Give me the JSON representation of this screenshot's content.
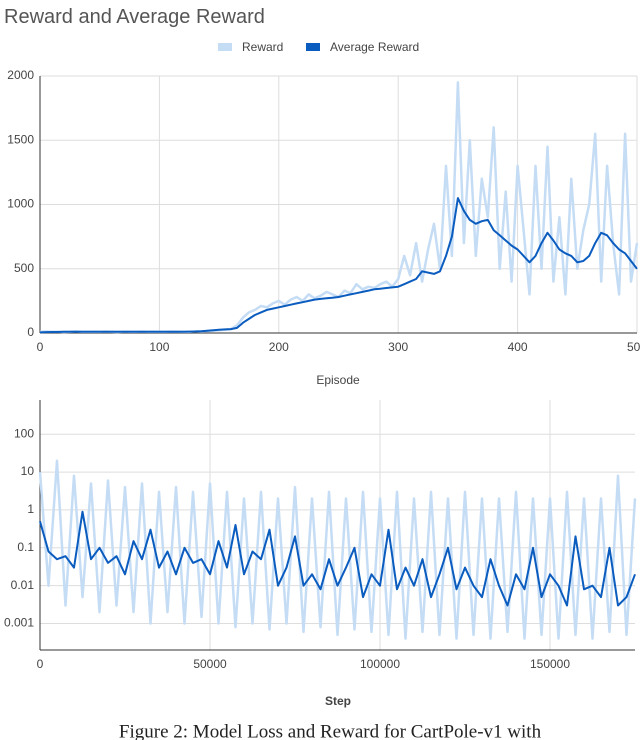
{
  "chart_data": [
    {
      "type": "line",
      "title": "Reward and Average Reward",
      "xlabel": "Episode",
      "x": [
        0,
        5,
        10,
        15,
        20,
        25,
        30,
        35,
        40,
        45,
        50,
        55,
        60,
        65,
        70,
        75,
        80,
        85,
        90,
        95,
        100,
        105,
        110,
        115,
        120,
        125,
        130,
        135,
        140,
        145,
        150,
        155,
        160,
        165,
        170,
        175,
        180,
        185,
        190,
        195,
        200,
        205,
        210,
        215,
        220,
        225,
        230,
        235,
        240,
        245,
        250,
        255,
        260,
        265,
        270,
        275,
        280,
        285,
        290,
        295,
        300,
        305,
        310,
        315,
        320,
        325,
        330,
        335,
        340,
        345,
        350,
        355,
        360,
        365,
        370,
        375,
        380,
        385,
        390,
        395,
        400,
        405,
        410,
        415,
        420,
        425,
        430,
        435,
        440,
        445,
        450,
        455,
        460,
        465,
        470,
        475,
        480,
        485,
        490,
        495,
        500
      ],
      "series": [
        {
          "name": "Reward",
          "color": "#c5dcf5",
          "values": [
            10,
            12,
            9,
            11,
            8,
            10,
            13,
            9,
            10,
            11,
            9,
            12,
            10,
            8,
            11,
            10,
            9,
            12,
            10,
            11,
            9,
            10,
            12,
            11,
            10,
            9,
            13,
            12,
            15,
            18,
            22,
            25,
            30,
            60,
            120,
            160,
            180,
            210,
            200,
            230,
            250,
            220,
            260,
            280,
            250,
            300,
            270,
            290,
            320,
            300,
            280,
            330,
            310,
            380,
            340,
            360,
            350,
            380,
            400,
            360,
            420,
            600,
            450,
            700,
            400,
            650,
            850,
            500,
            1300,
            600,
            1950,
            700,
            1500,
            600,
            1200,
            900,
            1600,
            500,
            1100,
            400,
            1300,
            800,
            300,
            1300,
            500,
            1450,
            400,
            900,
            300,
            1200,
            500,
            800,
            1000,
            1550,
            400,
            1300,
            700,
            300,
            1550,
            400,
            700
          ]
        },
        {
          "name": "Average Reward",
          "color": "#0b5cbf",
          "values": [
            5,
            7,
            8,
            8,
            9,
            9,
            9,
            9,
            9,
            9,
            9,
            9,
            9,
            9,
            9,
            9,
            9,
            9,
            9,
            9,
            9,
            9,
            10,
            10,
            10,
            11,
            12,
            14,
            18,
            22,
            25,
            28,
            30,
            40,
            80,
            110,
            140,
            160,
            180,
            190,
            200,
            210,
            220,
            230,
            240,
            250,
            260,
            265,
            270,
            275,
            280,
            290,
            300,
            310,
            320,
            330,
            340,
            345,
            350,
            355,
            360,
            380,
            400,
            420,
            480,
            470,
            460,
            480,
            600,
            750,
            1050,
            950,
            880,
            850,
            870,
            880,
            800,
            760,
            720,
            680,
            650,
            600,
            550,
            600,
            700,
            780,
            720,
            650,
            620,
            600,
            550,
            560,
            600,
            700,
            780,
            760,
            700,
            650,
            620,
            560,
            500
          ]
        }
      ],
      "xlim": [
        0,
        500
      ],
      "xticks": [
        0,
        100,
        200,
        300,
        400,
        500
      ],
      "ylim": [
        0,
        2000
      ],
      "yticks": [
        0,
        500,
        1000,
        1500,
        2000
      ],
      "grid": true,
      "legend": "top"
    },
    {
      "type": "line",
      "xlabel": "Step",
      "log_y": true,
      "x": [
        0,
        2500,
        5000,
        7500,
        10000,
        12500,
        15000,
        17500,
        20000,
        22500,
        25000,
        27500,
        30000,
        32500,
        35000,
        37500,
        40000,
        42500,
        45000,
        47500,
        50000,
        52500,
        55000,
        57500,
        60000,
        62500,
        65000,
        67500,
        70000,
        72500,
        75000,
        77500,
        80000,
        82500,
        85000,
        87500,
        90000,
        92500,
        95000,
        97500,
        100000,
        102500,
        105000,
        107500,
        110000,
        112500,
        115000,
        117500,
        120000,
        122500,
        125000,
        127500,
        130000,
        132500,
        135000,
        137500,
        140000,
        142500,
        145000,
        147500,
        150000,
        152500,
        155000,
        157500,
        160000,
        162500,
        165000,
        167500,
        170000,
        172500,
        175000
      ],
      "series": [
        {
          "color": "#c5dcf5",
          "values": [
            10,
            0.01,
            20,
            0.003,
            8,
            0.005,
            5,
            0.002,
            6,
            0.003,
            4,
            0.002,
            5,
            0.001,
            3,
            0.002,
            4,
            0.001,
            3,
            0.0015,
            5,
            0.001,
            3,
            0.0008,
            2,
            0.001,
            3,
            0.0007,
            2,
            0.001,
            4,
            0.0006,
            2,
            0.0008,
            3,
            0.0005,
            2,
            0.0007,
            3,
            0.0006,
            2,
            0.0005,
            3,
            0.0004,
            2,
            0.0006,
            3,
            0.0005,
            2,
            0.0004,
            3,
            0.0005,
            2,
            0.0004,
            2,
            0.0006,
            3,
            0.0004,
            2,
            0.0005,
            2,
            0.0004,
            3,
            0.0005,
            2,
            0.0004,
            2,
            0.0006,
            8,
            0.0005,
            2
          ]
        },
        {
          "color": "#0b5cbf",
          "values": [
            0.5,
            0.08,
            0.05,
            0.06,
            0.03,
            0.9,
            0.05,
            0.1,
            0.04,
            0.06,
            0.02,
            0.15,
            0.05,
            0.3,
            0.03,
            0.08,
            0.02,
            0.1,
            0.04,
            0.05,
            0.02,
            0.15,
            0.03,
            0.4,
            0.02,
            0.08,
            0.05,
            0.3,
            0.01,
            0.03,
            0.2,
            0.01,
            0.02,
            0.008,
            0.05,
            0.01,
            0.03,
            0.1,
            0.005,
            0.02,
            0.01,
            0.3,
            0.008,
            0.03,
            0.01,
            0.05,
            0.005,
            0.02,
            0.1,
            0.008,
            0.03,
            0.01,
            0.005,
            0.05,
            0.01,
            0.003,
            0.02,
            0.008,
            0.1,
            0.005,
            0.02,
            0.01,
            0.003,
            0.2,
            0.008,
            0.01,
            0.005,
            0.1,
            0.003,
            0.005,
            0.02
          ]
        }
      ],
      "xlim": [
        0,
        175000
      ],
      "xticks": [
        0,
        50000,
        100000,
        150000
      ],
      "ylim": [
        0.0002,
        800
      ],
      "yticks": [
        0.001,
        0.01,
        0.1,
        1,
        10,
        100
      ],
      "grid": true
    }
  ],
  "caption": "Figure 2: Model Loss and Reward for CartPole-v1 with"
}
